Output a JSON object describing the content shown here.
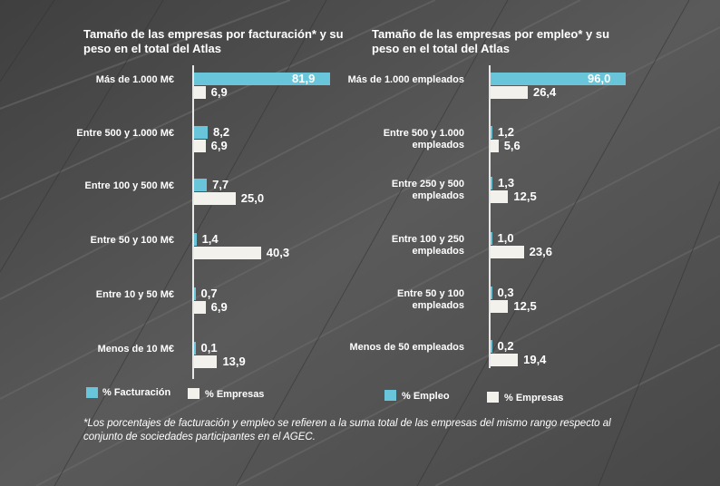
{
  "colors": {
    "series_primary": "#69c6da",
    "series_secondary": "#f2f1ec"
  },
  "left_chart": {
    "title": "Tamaño de las empresas por facturación* y su peso en el total del Atlas",
    "legend": [
      "% Facturación",
      "% Empresas"
    ]
  },
  "right_chart": {
    "title": "Tamaño de las empresas por empleo* y su peso en el total del Atlas",
    "legend": [
      "% Empleo",
      "% Empresas"
    ]
  },
  "footnote": "*Los porcentajes de facturación y empleo se refieren a la suma total de las empresas del mismo rango respecto al conjunto de sociedades participantes en el AGEC.",
  "chart_data": [
    {
      "type": "bar",
      "orientation": "horizontal",
      "title": "Tamaño de las empresas por facturación* y su peso en el total del Atlas",
      "categories": [
        "Más de 1.000 M€",
        "Entre 500 y 1.000 M€",
        "Entre 100 y 500 M€",
        "Entre 50 y 100 M€",
        "Entre 10 y 50 M€",
        "Menos de 10 M€"
      ],
      "series": [
        {
          "name": "% Facturación",
          "values": [
            81.9,
            8.2,
            7.7,
            1.4,
            0.7,
            0.1
          ],
          "labels": [
            "81,9",
            "8,2",
            "7,7",
            "1,4",
            "0,7",
            "0,1"
          ]
        },
        {
          "name": "% Empresas",
          "values": [
            6.9,
            6.9,
            25.0,
            40.3,
            6.9,
            13.9
          ],
          "labels": [
            "6,9",
            "6,9",
            "25,0",
            "40,3",
            "6,9",
            "13,9"
          ]
        }
      ],
      "legend_placement": "bottom"
    },
    {
      "type": "bar",
      "orientation": "horizontal",
      "title": "Tamaño de las empresas por empleo* y su peso en el total del Atlas",
      "categories": [
        "Más de 1.000 empleados",
        "Entre 500 y 1.000 empleados",
        "Entre 250 y 500 empleados",
        "Entre 100 y 250 empleados",
        "Entre 50 y 100 empleados",
        "Menos de 50 empleados"
      ],
      "series": [
        {
          "name": "% Empleo",
          "values": [
            96.0,
            1.2,
            1.3,
            1.0,
            0.3,
            0.2
          ],
          "labels": [
            "96,0",
            "1,2",
            "1,3",
            "1,0",
            "0,3",
            "0,2"
          ]
        },
        {
          "name": "% Empresas",
          "values": [
            26.4,
            5.6,
            12.5,
            23.6,
            12.5,
            19.4
          ],
          "labels": [
            "26,4",
            "5,6",
            "12,5",
            "23,6",
            "12,5",
            "19,4"
          ]
        }
      ],
      "legend_placement": "bottom"
    }
  ]
}
